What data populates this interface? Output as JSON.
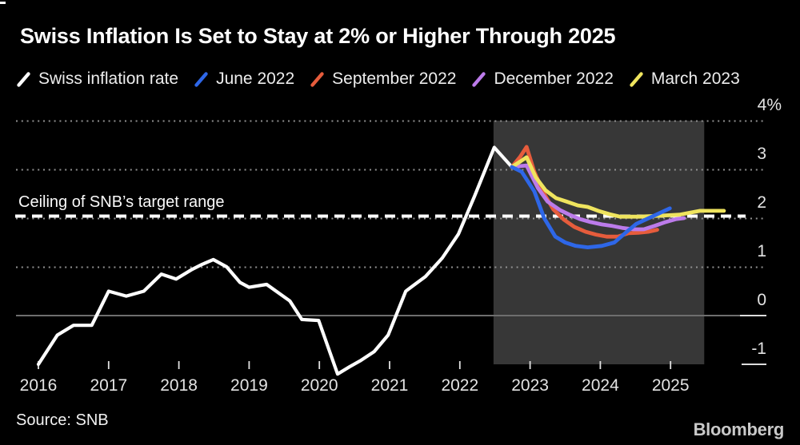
{
  "page": {
    "title": "Swiss Inflation Is Set to Stay at 2% or Higher Through 2025",
    "source": "Source: SNB",
    "brand": "Bloomberg"
  },
  "colors": {
    "background": "#000000",
    "actual_line": "#FFFFFF",
    "june_2022": "#2E67E8",
    "september_2022": "#E65C3C",
    "december_2022": "#BC7BEA",
    "march_2023": "#EFE45E",
    "forecast_region": "#373737",
    "gridline_dotted": "#909090",
    "zero_line": "#6E6E6E",
    "axis_text": "#E3E3E3"
  },
  "legend": {
    "items": [
      {
        "label": "Swiss inflation rate",
        "color": "#FFFFFF"
      },
      {
        "label": "June 2022",
        "color": "#2E67E8"
      },
      {
        "label": "September 2022",
        "color": "#E65C3C"
      },
      {
        "label": "December 2022",
        "color": "#BC7BEA"
      },
      {
        "label": "March 2023",
        "color": "#EFE45E"
      }
    ]
  },
  "chart_data": {
    "type": "line",
    "title": "Swiss Inflation Is Set to Stay at 2% or Higher Through 2025",
    "xlabel": "",
    "ylabel": "%",
    "annotation": {
      "label": "Ceiling of SNB’s target range",
      "value": 2.0,
      "style": "dashed"
    },
    "y_axis": {
      "tick_labels": [
        "4%",
        "3",
        "2",
        "1",
        "0",
        "-1"
      ],
      "tick_values": [
        4,
        3,
        2,
        1,
        0,
        -1
      ],
      "dotted_gridlines": [
        4,
        3,
        2,
        1
      ],
      "solid_zero_line": 0,
      "right_tick_only": -1,
      "ylim": [
        -1,
        4
      ]
    },
    "x_axis": {
      "tick_labels": [
        "2016",
        "2017",
        "2018",
        "2019",
        "2020",
        "2021",
        "2022",
        "2023",
        "2024",
        "2025"
      ],
      "tick_values": [
        2016,
        2017,
        2018,
        2019,
        2020,
        2021,
        2022,
        2023,
        2024,
        2025
      ],
      "xlim": [
        2015.7,
        2026.4
      ]
    },
    "forecast_region": {
      "x_start": 2022.48,
      "x_end": 2025.48,
      "y_top": 4,
      "y_bottom": -1
    },
    "series": [
      {
        "name": "Swiss inflation rate",
        "color": "#FFFFFF",
        "width": 4.2,
        "points": [
          [
            2016.0,
            -1.0
          ],
          [
            2016.27,
            -0.4
          ],
          [
            2016.5,
            -0.2
          ],
          [
            2016.76,
            -0.2
          ],
          [
            2017.0,
            0.5
          ],
          [
            2017.25,
            0.4
          ],
          [
            2017.5,
            0.5
          ],
          [
            2017.75,
            0.85
          ],
          [
            2017.96,
            0.75
          ],
          [
            2018.19,
            0.95
          ],
          [
            2018.33,
            1.05
          ],
          [
            2018.49,
            1.15
          ],
          [
            2018.68,
            1.0
          ],
          [
            2018.87,
            0.68
          ],
          [
            2019.0,
            0.58
          ],
          [
            2019.25,
            0.64
          ],
          [
            2019.58,
            0.3
          ],
          [
            2019.75,
            -0.08
          ],
          [
            2019.99,
            -0.1
          ],
          [
            2020.26,
            -1.2
          ],
          [
            2020.43,
            -1.05
          ],
          [
            2020.58,
            -0.93
          ],
          [
            2020.78,
            -0.74
          ],
          [
            2020.98,
            -0.4
          ],
          [
            2021.23,
            0.5
          ],
          [
            2021.34,
            0.62
          ],
          [
            2021.51,
            0.8
          ],
          [
            2021.75,
            1.18
          ],
          [
            2021.98,
            1.67
          ],
          [
            2022.21,
            2.45
          ],
          [
            2022.35,
            2.95
          ],
          [
            2022.49,
            3.45
          ],
          [
            2022.74,
            3.05
          ]
        ]
      },
      {
        "name": "September 2022",
        "color": "#E65C3C",
        "width": 4.8,
        "points": [
          [
            2022.74,
            3.05
          ],
          [
            2022.86,
            3.26
          ],
          [
            2022.95,
            3.46
          ],
          [
            2023.06,
            2.95
          ],
          [
            2023.2,
            2.5
          ],
          [
            2023.33,
            2.18
          ],
          [
            2023.48,
            1.97
          ],
          [
            2023.63,
            1.82
          ],
          [
            2023.79,
            1.72
          ],
          [
            2023.94,
            1.66
          ],
          [
            2024.09,
            1.62
          ],
          [
            2024.25,
            1.62
          ],
          [
            2024.4,
            1.69
          ],
          [
            2024.54,
            1.7
          ],
          [
            2024.68,
            1.72
          ],
          [
            2024.81,
            1.76
          ]
        ]
      },
      {
        "name": "December 2022",
        "color": "#BC7BEA",
        "width": 4.8,
        "points": [
          [
            2022.74,
            3.05
          ],
          [
            2022.95,
            3.08
          ],
          [
            2023.11,
            2.62
          ],
          [
            2023.25,
            2.34
          ],
          [
            2023.43,
            2.16
          ],
          [
            2023.56,
            2.07
          ],
          [
            2023.71,
            1.98
          ],
          [
            2023.86,
            1.92
          ],
          [
            2024.02,
            1.87
          ],
          [
            2024.17,
            1.84
          ],
          [
            2024.31,
            1.8
          ],
          [
            2024.47,
            1.77
          ],
          [
            2024.62,
            1.77
          ],
          [
            2024.77,
            1.84
          ],
          [
            2024.93,
            1.92
          ],
          [
            2025.08,
            1.98
          ],
          [
            2025.19,
            2.0
          ]
        ]
      },
      {
        "name": "March 2023",
        "color": "#EFE45E",
        "width": 4.8,
        "points": [
          [
            2022.74,
            3.05
          ],
          [
            2022.86,
            3.16
          ],
          [
            2022.95,
            3.25
          ],
          [
            2023.08,
            2.84
          ],
          [
            2023.22,
            2.57
          ],
          [
            2023.37,
            2.41
          ],
          [
            2023.52,
            2.34
          ],
          [
            2023.68,
            2.26
          ],
          [
            2023.82,
            2.23
          ],
          [
            2023.97,
            2.15
          ],
          [
            2024.13,
            2.08
          ],
          [
            2024.28,
            2.03
          ],
          [
            2024.56,
            2.03
          ],
          [
            2024.85,
            2.05
          ],
          [
            2025.13,
            2.07
          ],
          [
            2025.27,
            2.11
          ],
          [
            2025.42,
            2.15
          ],
          [
            2025.76,
            2.15
          ]
        ]
      },
      {
        "name": "June 2022",
        "color": "#2E67E8",
        "width": 4.8,
        "points": [
          [
            2022.74,
            3.05
          ],
          [
            2022.88,
            2.95
          ],
          [
            2023.06,
            2.55
          ],
          [
            2023.2,
            2.0
          ],
          [
            2023.36,
            1.62
          ],
          [
            2023.5,
            1.5
          ],
          [
            2023.65,
            1.43
          ],
          [
            2023.82,
            1.4
          ],
          [
            2024.02,
            1.43
          ],
          [
            2024.2,
            1.5
          ],
          [
            2024.36,
            1.7
          ],
          [
            2024.51,
            1.88
          ],
          [
            2024.99,
            2.2
          ]
        ]
      }
    ]
  }
}
